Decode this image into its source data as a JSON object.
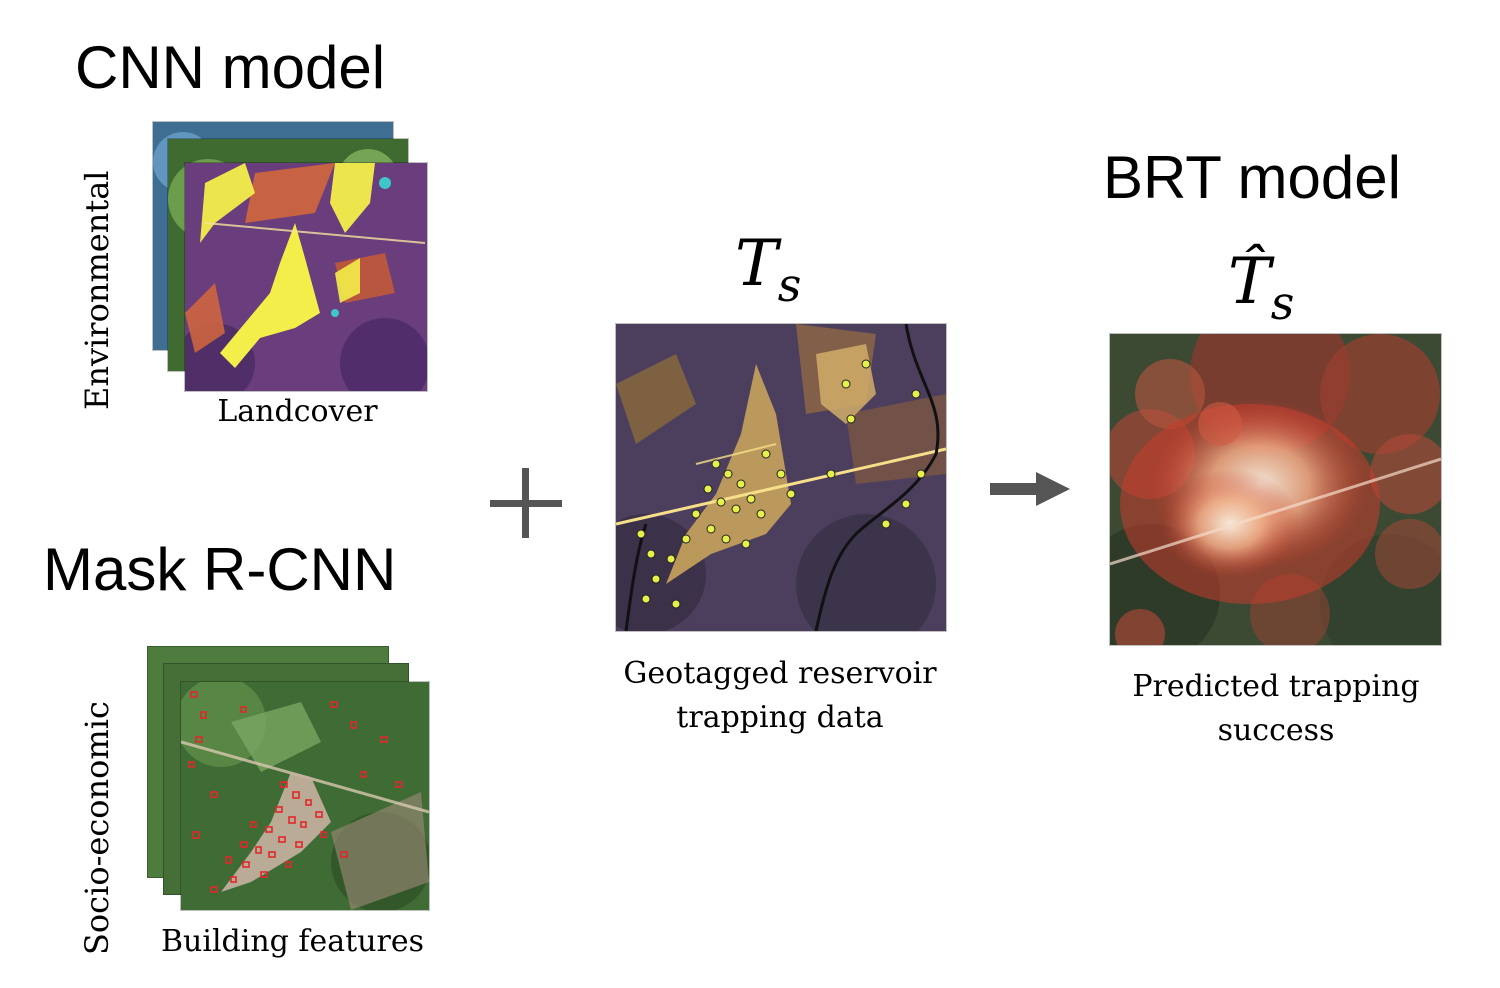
{
  "cnn": {
    "title": "CNN model",
    "side_label": "Environmental",
    "caption": "Landcover",
    "layer_colors": [
      "#4b7fa6",
      "#4f7d3a",
      "#7b3b8a"
    ]
  },
  "mask": {
    "title": "Mask R-CNN",
    "side_label": "Socio-economic",
    "caption": "Building features"
  },
  "operators": {
    "plus": "+",
    "arrow": "right-arrow-icon"
  },
  "trapping": {
    "symbol": "T",
    "subscript": "s",
    "caption_line1": "Geotagged reservoir",
    "caption_line2": "trapping data"
  },
  "brt": {
    "title": "BRT model",
    "symbol": "T̂",
    "subscript": "s",
    "caption_line1": "Predicted trapping",
    "caption_line2": "success"
  },
  "colors": {
    "operator_gray": "#555555",
    "landcover_purple": "#6a3d7c",
    "landcover_yellow": "#f4ee4a",
    "landcover_orange": "#d2663c",
    "building_red": "#e0282c",
    "heat_red": "#c83c2c",
    "heat_white": "#f8efe0"
  }
}
